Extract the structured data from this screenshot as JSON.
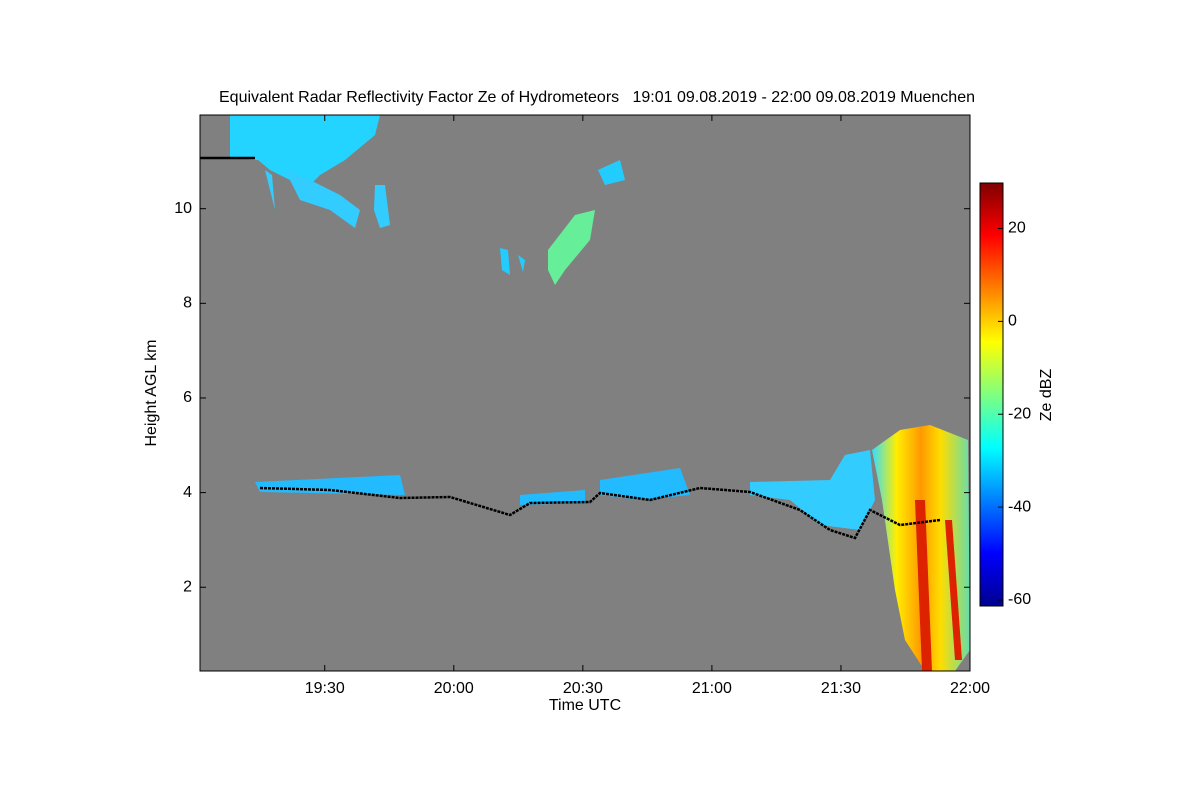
{
  "chart_data": {
    "type": "heatmap",
    "title": "Equivalent Radar Reflectivity Factor Ze of Hydrometeors   19:01 09.08.2019 - 22:00 09.08.2019 Muenchen",
    "x_label": "Time UTC",
    "y_label": "Height AGL km",
    "xlim": [
      19.0167,
      22
    ],
    "xticks": [
      {
        "value": 19.5,
        "label": "19:30"
      },
      {
        "value": 20,
        "label": "20:00"
      },
      {
        "value": 20.5,
        "label": "20:30"
      },
      {
        "value": 21,
        "label": "21:00"
      },
      {
        "value": 21.5,
        "label": "21:30"
      },
      {
        "value": 22,
        "label": "22:00"
      }
    ],
    "ylim": [
      0.23,
      11.98
    ],
    "yticks": [
      2,
      4,
      6,
      8,
      10
    ],
    "colorbar": {
      "label": "Ze dBZ",
      "clim": [
        -61.3,
        29.8
      ],
      "ticks": [
        20,
        0,
        -20,
        -40,
        -60
      ]
    }
  }
}
